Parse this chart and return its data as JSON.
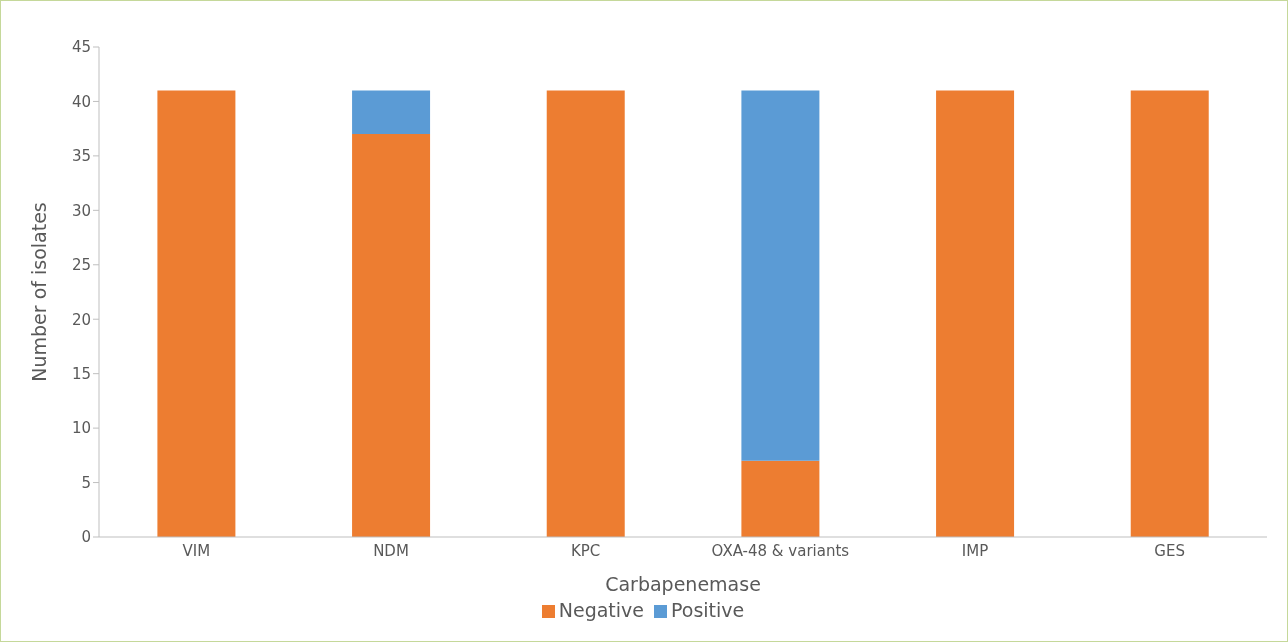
{
  "chart_data": {
    "type": "bar",
    "stacked": true,
    "xlabel": "Carbapenemase",
    "ylabel": "Number of isolates",
    "categories": [
      "VIM",
      "NDM",
      "KPC",
      "OXA-48 & variants",
      "IMP",
      "GES"
    ],
    "series": [
      {
        "name": "Negative",
        "color": "#ed7d31",
        "values": [
          41,
          37,
          41,
          7,
          41,
          41
        ]
      },
      {
        "name": "Positive",
        "color": "#5b9bd5",
        "values": [
          0,
          4,
          0,
          34,
          0,
          0
        ]
      }
    ],
    "ylim": [
      0,
      45
    ],
    "yticks": [
      0,
      5,
      10,
      15,
      20,
      25,
      30,
      35,
      40,
      45
    ],
    "grid": false,
    "legend": "bottom"
  }
}
